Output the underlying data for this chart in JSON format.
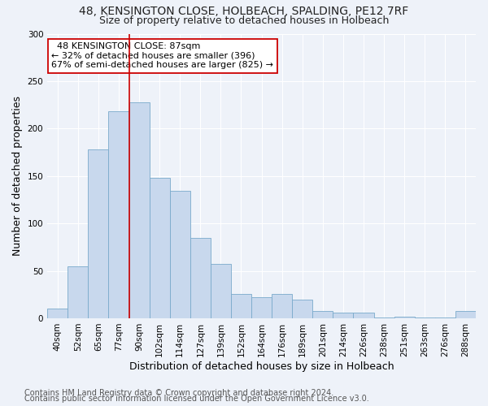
{
  "title1": "48, KENSINGTON CLOSE, HOLBEACH, SPALDING, PE12 7RF",
  "title2": "Size of property relative to detached houses in Holbeach",
  "xlabel": "Distribution of detached houses by size in Holbeach",
  "ylabel": "Number of detached properties",
  "footnote1": "Contains HM Land Registry data © Crown copyright and database right 2024.",
  "footnote2": "Contains public sector information licensed under the Open Government Licence v3.0.",
  "bar_labels": [
    "40sqm",
    "52sqm",
    "65sqm",
    "77sqm",
    "90sqm",
    "102sqm",
    "114sqm",
    "127sqm",
    "139sqm",
    "152sqm",
    "164sqm",
    "176sqm",
    "189sqm",
    "201sqm",
    "214sqm",
    "226sqm",
    "238sqm",
    "251sqm",
    "263sqm",
    "276sqm",
    "288sqm"
  ],
  "bar_values": [
    10,
    55,
    178,
    218,
    228,
    148,
    134,
    85,
    57,
    26,
    22,
    26,
    20,
    8,
    6,
    6,
    1,
    2,
    1,
    1,
    8
  ],
  "bar_color": "#c8d8ed",
  "bar_edge_color": "#7aaacb",
  "property_label": "48 KENSINGTON CLOSE: 87sqm",
  "pct_smaller": 32,
  "n_smaller": 396,
  "pct_semi_larger": 67,
  "n_semi_larger": 825,
  "red_line_bar_index": 4,
  "ylim": [
    0,
    300
  ],
  "yticks": [
    0,
    50,
    100,
    150,
    200,
    250,
    300
  ],
  "bg_color": "#eef2f9",
  "plot_bg_color": "#eef2f9",
  "annotation_box_color": "#ffffff",
  "annotation_box_edge": "#cc0000",
  "red_line_color": "#cc0000",
  "title1_fontsize": 10,
  "title2_fontsize": 9,
  "axis_label_fontsize": 9,
  "tick_fontsize": 7.5,
  "annotation_fontsize": 8,
  "footnote_fontsize": 7
}
